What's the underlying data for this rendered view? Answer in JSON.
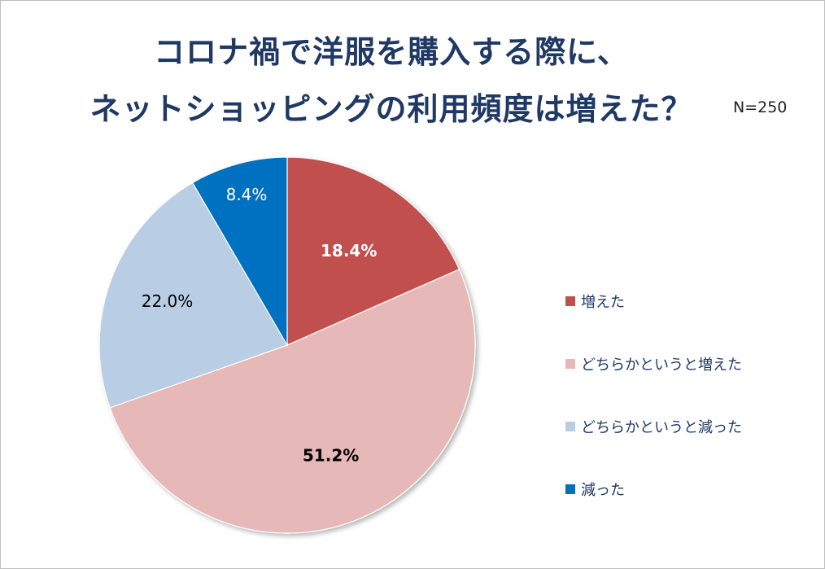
{
  "title": {
    "line1": "コロナ禍で洋服を購入する際に、",
    "line2": "ネットショッピングの利用頻度は増えた？"
  },
  "n_label": "N=250",
  "chart_data": {
    "type": "pie",
    "title": "コロナ禍で洋服を購入する際に、ネットショッピングの利用頻度は増えた？",
    "sample_size": "N=250",
    "start_angle_deg": 0,
    "direction": "clockwise",
    "legend_position": "right",
    "slices": [
      {
        "name": "増えた",
        "value": 18.4,
        "label": "18.4%",
        "color": "#c0504d",
        "label_color": "#ffffff",
        "label_bold": true
      },
      {
        "name": "どちらかというと増えた",
        "value": 51.2,
        "label": "51.2%",
        "color": "#e6b8b7",
        "label_color": "#000000",
        "label_bold": true
      },
      {
        "name": "どちらかというと減った",
        "value": 22.0,
        "label": "22.0%",
        "color": "#b9cde5",
        "label_color": "#000000",
        "label_bold": false
      },
      {
        "name": "減った",
        "value": 8.4,
        "label": "8.4%",
        "color": "#0070c0",
        "label_color": "#ffffff",
        "label_bold": false
      }
    ]
  }
}
